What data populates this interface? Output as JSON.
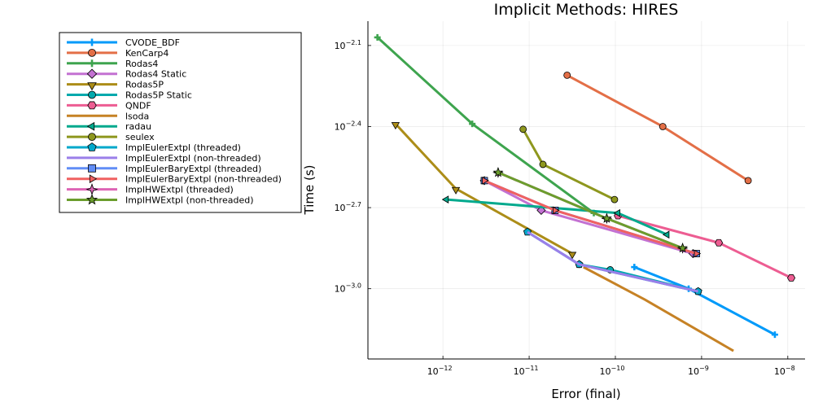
{
  "chart_data": {
    "type": "line",
    "title": "Implicit Methods: HIRES",
    "xlabel": "Error (final)",
    "ylabel": "Time (s)",
    "x_scale": "log10",
    "y_scale": "log10",
    "xlim_log10": [
      -12.87,
      -7.8
    ],
    "ylim_log10": [
      -3.26,
      -2.01
    ],
    "x_ticks": [
      {
        "value": -12,
        "base": "10",
        "exp": "−12"
      },
      {
        "value": -11,
        "base": "10",
        "exp": "−11"
      },
      {
        "value": -10,
        "base": "10",
        "exp": "−10"
      },
      {
        "value": -9,
        "base": "10",
        "exp": "−9"
      },
      {
        "value": -8,
        "base": "10",
        "exp": "−8"
      }
    ],
    "y_ticks": [
      {
        "value": -3.0,
        "base": "10",
        "exp": "−3.0"
      },
      {
        "value": -2.7,
        "base": "10",
        "exp": "−2.7"
      },
      {
        "value": -2.4,
        "base": "10",
        "exp": "−2.4"
      },
      {
        "value": -2.1,
        "base": "10",
        "exp": "−2.1"
      }
    ],
    "grid": true,
    "legend_position": "outside-left-top",
    "series": [
      {
        "name": "CVODE_BDF",
        "color": "#009AFA",
        "marker": "cross",
        "x": [
          -9.78,
          -9.15,
          -8.15
        ],
        "y": [
          -2.92,
          -3.0,
          -3.17
        ]
      },
      {
        "name": "KenCarp4",
        "color": "#E36F47",
        "marker": "circle",
        "x": [
          -10.56,
          -9.45,
          -8.46
        ],
        "y": [
          -2.21,
          -2.4,
          -2.6
        ]
      },
      {
        "name": "Rodas4",
        "color": "#3EA44E",
        "marker": "cross",
        "x": [
          -12.76,
          -11.66,
          -10.25
        ],
        "y": [
          -2.07,
          -2.39,
          -2.72
        ]
      },
      {
        "name": "Rodas4 Static",
        "color": "#C371D2",
        "marker": "diamond",
        "x": [
          -11.52,
          -10.86,
          -9.1
        ],
        "y": [
          -2.6,
          -2.71,
          -2.87
        ]
      },
      {
        "name": "Rodas5P",
        "color": "#AC8D18",
        "marker": "triangle-down",
        "x": [
          -12.55,
          -11.85,
          -10.5
        ],
        "y": [
          -2.39,
          -2.63,
          -2.87
        ]
      },
      {
        "name": "Rodas5P Static",
        "color": "#00A9AD",
        "marker": "circle",
        "x": [
          -10.42,
          -10.06,
          -9.04
        ],
        "y": [
          -2.91,
          -2.93,
          -3.01
        ]
      },
      {
        "name": "QNDF",
        "color": "#ED5D92",
        "marker": "hexagon",
        "x": [
          -9.97,
          -8.8,
          -7.96
        ],
        "y": [
          -2.73,
          -2.83,
          -2.96
        ]
      },
      {
        "name": "lsoda",
        "color": "#C68225",
        "marker": "none",
        "x": [
          -10.37,
          -9.66,
          -8.63
        ],
        "y": [
          -2.92,
          -3.04,
          -3.23
        ]
      },
      {
        "name": "radau",
        "color": "#00A98D",
        "marker": "triangle-left",
        "x": [
          -11.96,
          -9.97,
          -9.4
        ],
        "y": [
          -2.67,
          -2.72,
          -2.8
        ]
      },
      {
        "name": "seulex",
        "color": "#8E971E",
        "marker": "circle",
        "x": [
          -11.07,
          -10.84,
          -10.01
        ],
        "y": [
          -2.41,
          -2.54,
          -2.67
        ]
      },
      {
        "name": "ImplEulerExtpl (threaded)",
        "color": "#00A8CB",
        "marker": "pentagon",
        "x": [
          -11.02,
          -10.42,
          -9.04
        ],
        "y": [
          -2.79,
          -2.91,
          -3.01
        ]
      },
      {
        "name": "ImplEulerExtpl (non-threaded)",
        "color": "#9B7FE9",
        "marker": "none",
        "x": [
          -11.02,
          -10.42,
          -9.04
        ],
        "y": [
          -2.79,
          -2.91,
          -3.01
        ]
      },
      {
        "name": "ImplEulerBaryExtpl (threaded)",
        "color": "#618DF6",
        "marker": "square",
        "x": [
          -11.52,
          -10.7,
          -9.06
        ],
        "y": [
          -2.6,
          -2.71,
          -2.87
        ]
      },
      {
        "name": "ImplEulerBaryExtpl (non-threaded)",
        "color": "#F06161",
        "marker": "triangle-right",
        "x": [
          -11.52,
          -10.7,
          -9.06
        ],
        "y": [
          -2.6,
          -2.71,
          -2.87
        ]
      },
      {
        "name": "ImplHWExtpl (threaded)",
        "color": "#DD64B5",
        "marker": "star4",
        "x": [
          -11.36,
          -10.1,
          -9.22
        ],
        "y": [
          -2.57,
          -2.74,
          -2.85
        ]
      },
      {
        "name": "ImplHWExtpl (non-threaded)",
        "color": "#6B9D2D",
        "marker": "star5",
        "x": [
          -11.36,
          -10.1,
          -9.22
        ],
        "y": [
          -2.57,
          -2.74,
          -2.85
        ]
      }
    ]
  }
}
